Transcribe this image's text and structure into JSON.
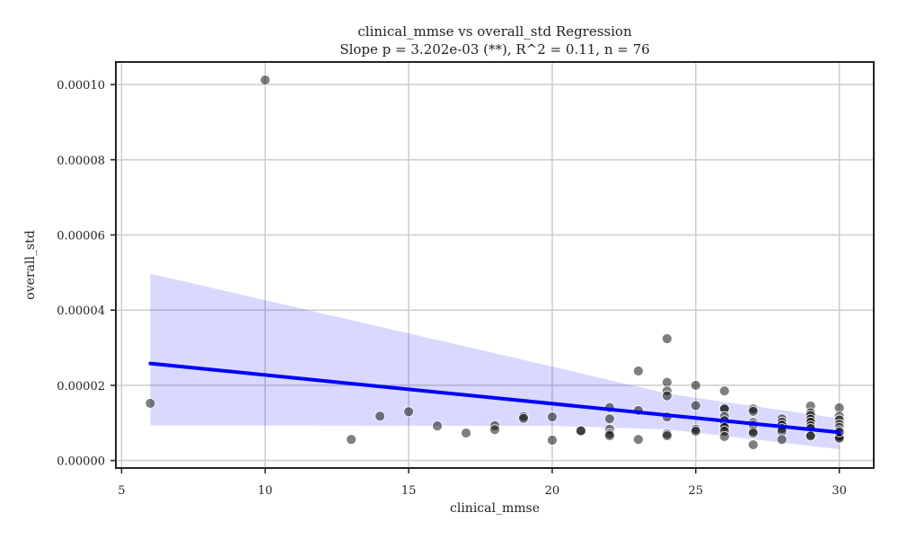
{
  "chart_data": {
    "type": "scatter",
    "title": "clinical_mmse vs overall_std Regression",
    "subtitle": "Slope p = 3.202e-03 (**), R^2 = 0.11, n = 76",
    "xlabel": "clinical_mmse",
    "ylabel": "overall_std",
    "xlim": [
      4.8,
      31.2
    ],
    "ylim": [
      -2e-06,
      0.000106
    ],
    "x_ticks": [
      5,
      10,
      15,
      20,
      25,
      30
    ],
    "x_tick_labels": [
      "5",
      "10",
      "15",
      "20",
      "25",
      "30"
    ],
    "y_ticks": [
      0,
      2e-05,
      4e-05,
      6e-05,
      8e-05,
      0.0001
    ],
    "y_tick_labels": [
      "0.00000",
      "0.00002",
      "0.00004",
      "0.00006",
      "0.00008",
      "0.00010"
    ],
    "grid": true,
    "series": [
      {
        "kind": "scatter",
        "color": "#000000",
        "opacity": 0.5,
        "points": [
          [
            6,
            1.52e-05
          ],
          [
            10,
            0.0001012
          ],
          [
            13,
            5.6e-06
          ],
          [
            14,
            1.18e-05
          ],
          [
            15,
            1.3e-05
          ],
          [
            16,
            9.2e-06
          ],
          [
            17,
            7.3e-06
          ],
          [
            18,
            9.3e-06
          ],
          [
            18,
            8.2e-06
          ],
          [
            19,
            1.17e-05
          ],
          [
            19,
            1.12e-05
          ],
          [
            20,
            1.16e-05
          ],
          [
            20,
            5.4e-06
          ],
          [
            21,
            7.9e-06
          ],
          [
            21,
            7.9e-06
          ],
          [
            22,
            1.41e-05
          ],
          [
            22,
            1.11e-05
          ],
          [
            22,
            8.3e-06
          ],
          [
            22,
            7.1e-06
          ],
          [
            22,
            6.6e-06
          ],
          [
            23,
            2.38e-05
          ],
          [
            23,
            1.33e-05
          ],
          [
            23,
            5.6e-06
          ],
          [
            24,
            3.24e-05
          ],
          [
            24,
            2.08e-05
          ],
          [
            24,
            1.85e-05
          ],
          [
            24,
            1.72e-05
          ],
          [
            24,
            1.16e-05
          ],
          [
            24,
            7.1e-06
          ],
          [
            24,
            6.6e-06
          ],
          [
            25,
            2e-05
          ],
          [
            25,
            1.46e-05
          ],
          [
            25,
            8.3e-06
          ],
          [
            25,
            7.8e-06
          ],
          [
            26,
            1.85e-05
          ],
          [
            26,
            1.4e-05
          ],
          [
            26,
            1.37e-05
          ],
          [
            26,
            1.17e-05
          ],
          [
            26,
            1.06e-05
          ],
          [
            26,
            9.6e-06
          ],
          [
            26,
            8.8e-06
          ],
          [
            26,
            7.8e-06
          ],
          [
            26,
            6.4e-06
          ],
          [
            27,
            1.37e-05
          ],
          [
            27,
            1.31e-05
          ],
          [
            27,
            1.01e-05
          ],
          [
            27,
            9.4e-06
          ],
          [
            27,
            7.8e-06
          ],
          [
            27,
            7.3e-06
          ],
          [
            27,
            4.2e-06
          ],
          [
            28,
            1.11e-05
          ],
          [
            28,
            1.02e-05
          ],
          [
            28,
            9.4e-06
          ],
          [
            28,
            8.5e-06
          ],
          [
            28,
            7.8e-06
          ],
          [
            28,
            5.6e-06
          ],
          [
            29,
            1.45e-05
          ],
          [
            29,
            1.27e-05
          ],
          [
            29,
            1.2e-05
          ],
          [
            29,
            1.1e-05
          ],
          [
            29,
            1.02e-05
          ],
          [
            29,
            9.2e-06
          ],
          [
            29,
            8.5e-06
          ],
          [
            29,
            6.8e-06
          ],
          [
            29,
            6.5e-06
          ],
          [
            30,
            1.4e-05
          ],
          [
            30,
            1.18e-05
          ],
          [
            30,
            1.08e-05
          ],
          [
            30,
            9.6e-06
          ],
          [
            30,
            8.8e-06
          ],
          [
            30,
            8e-06
          ],
          [
            30,
            7.2e-06
          ],
          [
            30,
            6.6e-06
          ],
          [
            30,
            6.3e-06
          ],
          [
            30,
            5.9e-06
          ],
          [
            30,
            7.6e-06
          ]
        ]
      },
      {
        "kind": "regression-line",
        "color": "#0000ff",
        "x": [
          6,
          30
        ],
        "y": [
          2.58e-05,
          7.5e-06
        ]
      },
      {
        "kind": "confidence-band",
        "color": "#0000ff",
        "opacity": 0.15,
        "x": [
          6,
          20,
          24,
          30
        ],
        "upper": [
          4.97e-05,
          2.5e-05,
          1.78e-05,
          1.12e-05
        ],
        "lower": [
          9.3e-06,
          9.2e-06,
          8.3e-06,
          3e-06
        ]
      }
    ]
  }
}
